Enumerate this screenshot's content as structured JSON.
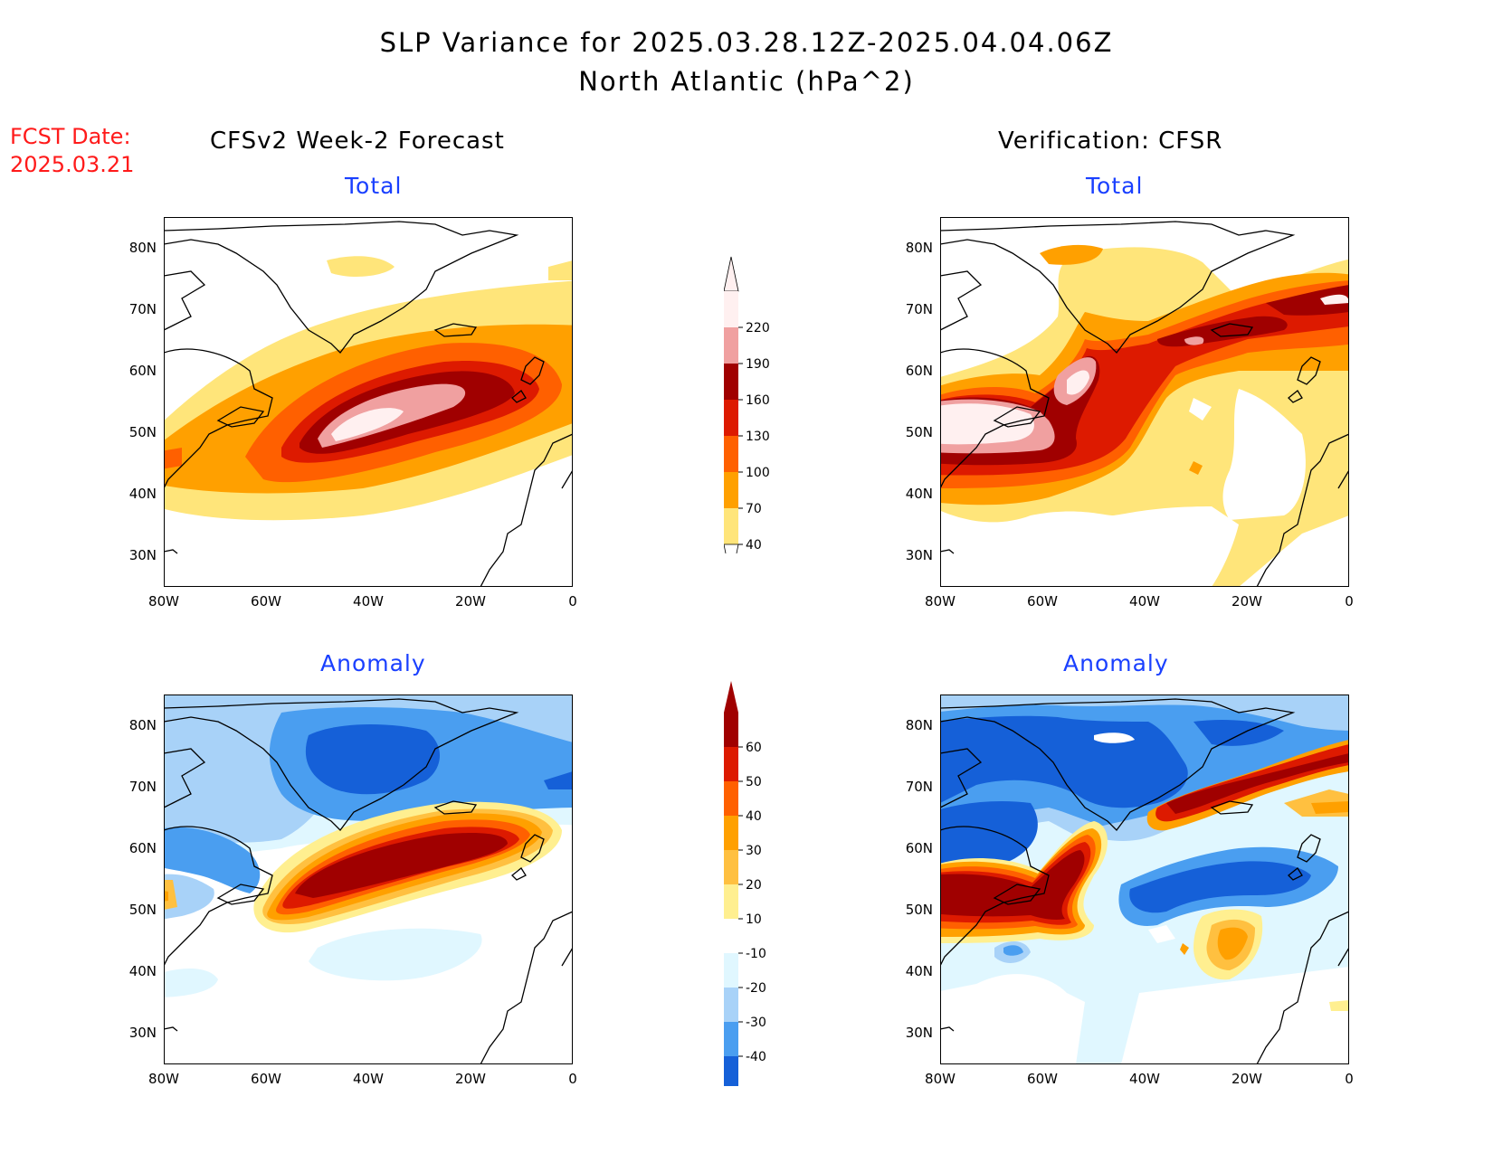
{
  "title": {
    "line1": "SLP Variance for 2025.03.28.12Z-2025.04.04.06Z",
    "line2": "North Atlantic (hPa^2)"
  },
  "fcst": {
    "line1": "FCST Date:",
    "line2": "2025.03.21"
  },
  "columns": {
    "left": "CFSv2 Week-2 Forecast",
    "right": "Verification: CFSR"
  },
  "panels": {
    "forecast_total": "Total",
    "verification_total": "Total",
    "forecast_anomaly": "Anomaly",
    "verification_anomaly": "Anomaly"
  },
  "axes": {
    "lat": [
      "80N",
      "70N",
      "60N",
      "50N",
      "40N",
      "30N"
    ],
    "lon": [
      "80W",
      "60W",
      "40W",
      "20W",
      "0"
    ]
  },
  "colorbar_total": {
    "levels": [
      "220",
      "190",
      "160",
      "130",
      "100",
      "70",
      "40"
    ],
    "colors": [
      "#fff0f0",
      "#f0a0a0",
      "#a00000",
      "#dd1a00",
      "#ff6000",
      "#ffa000",
      "#ffe57a"
    ]
  },
  "colorbar_anomaly": {
    "levels": [
      "60",
      "50",
      "40",
      "30",
      "20",
      "10",
      "-10",
      "-20",
      "-30",
      "-40"
    ],
    "colors": [
      "#a00000",
      "#dd1a00",
      "#ff6000",
      "#ffa000",
      "#ffc040",
      "#ffef90",
      "#ffffff",
      "#e0f7ff",
      "#a8d2f8",
      "#4a9ef0",
      "#1560d8"
    ]
  }
}
